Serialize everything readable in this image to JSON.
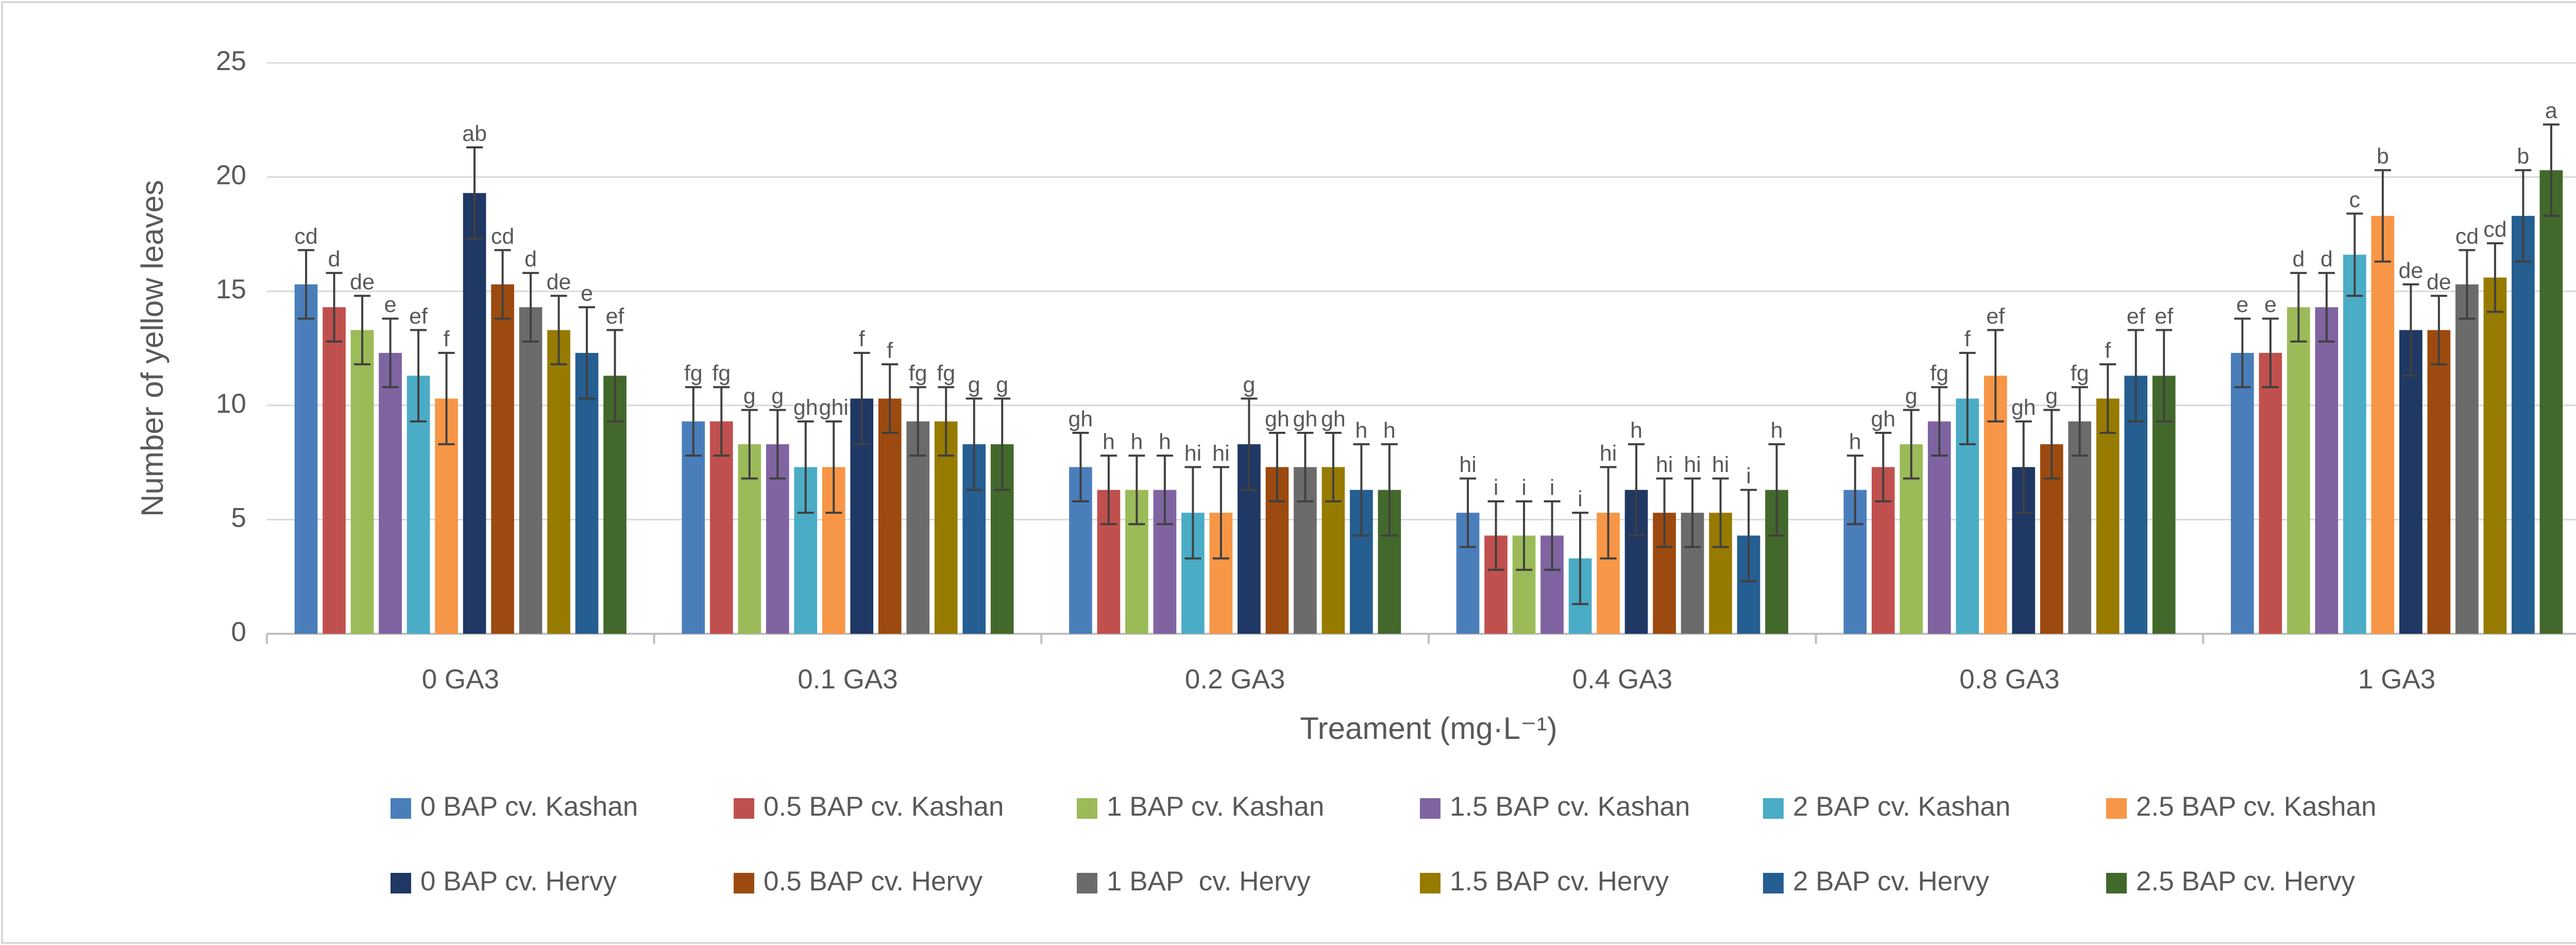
{
  "chart_data": {
    "type": "bar",
    "x_label": "Treament (mg·L⁻¹)",
    "y_label": "Number of yellow leaves",
    "categories": [
      "0 GA3",
      "0.1 GA3",
      "0.2 GA3",
      "0.4 GA3",
      "0.8 GA3",
      "1 GA3"
    ],
    "ylim": [
      0,
      25
    ],
    "yticks": [
      0,
      5,
      10,
      15,
      20,
      25
    ],
    "grid": true,
    "legend": "bottom",
    "series": [
      {
        "name": "0 BAP cv. Kashan",
        "color": "#4a7ebb",
        "values": [
          15.3,
          9.3,
          7.3,
          5.3,
          6.3,
          12.3
        ],
        "errors": [
          1.5,
          1.5,
          1.5,
          1.5,
          1.5,
          1.5
        ],
        "labels": [
          "cd",
          "fg",
          "gh",
          "hi",
          "h",
          "e"
        ]
      },
      {
        "name": "0.5 BAP cv. Kashan",
        "color": "#c0504d",
        "values": [
          14.3,
          9.3,
          6.3,
          4.3,
          7.3,
          12.3
        ],
        "errors": [
          1.5,
          1.5,
          1.5,
          1.5,
          1.5,
          1.5
        ],
        "labels": [
          "d",
          "fg",
          "h",
          "i",
          "gh",
          "e"
        ]
      },
      {
        "name": "1 BAP cv. Kashan",
        "color": "#9bbb59",
        "values": [
          13.3,
          8.3,
          6.3,
          4.3,
          8.3,
          14.3
        ],
        "errors": [
          1.5,
          1.5,
          1.5,
          1.5,
          1.5,
          1.5
        ],
        "labels": [
          "de",
          "g",
          "h",
          "i",
          "g",
          "d"
        ]
      },
      {
        "name": "1.5 BAP cv. Kashan",
        "color": "#8064a2",
        "values": [
          12.3,
          8.3,
          6.3,
          4.3,
          9.3,
          14.3
        ],
        "errors": [
          1.5,
          1.5,
          1.5,
          1.5,
          1.5,
          1.5
        ],
        "labels": [
          "e",
          "g",
          "h",
          "i",
          "fg",
          "d"
        ]
      },
      {
        "name": "2 BAP cv. Kashan",
        "color": "#4bacc6",
        "values": [
          11.3,
          7.3,
          5.3,
          3.3,
          10.3,
          16.6
        ],
        "errors": [
          2,
          2,
          2,
          2,
          2,
          1.8
        ],
        "labels": [
          "ef",
          "gh",
          "hi",
          "i",
          "f",
          "c"
        ]
      },
      {
        "name": "2.5 BAP cv. Kashan",
        "color": "#f79646",
        "values": [
          10.3,
          7.3,
          5.3,
          5.3,
          11.3,
          18.3
        ],
        "errors": [
          2,
          2,
          2,
          2,
          2,
          2
        ],
        "labels": [
          "f",
          "ghi",
          "hi",
          "hi",
          "ef",
          "b"
        ]
      },
      {
        "name": "0 BAP cv. Hervy",
        "color": "#1f3864",
        "values": [
          19.3,
          10.3,
          8.3,
          6.3,
          7.3,
          13.3
        ],
        "errors": [
          2,
          2,
          2,
          2,
          2,
          2
        ],
        "labels": [
          "ab",
          "f",
          "g",
          "h",
          "gh",
          "de"
        ]
      },
      {
        "name": "0.5 BAP cv. Hervy",
        "color": "#9c4a0f",
        "values": [
          15.3,
          10.3,
          7.3,
          5.3,
          8.3,
          13.3
        ],
        "errors": [
          1.5,
          1.5,
          1.5,
          1.5,
          1.5,
          1.5
        ],
        "labels": [
          "cd",
          "f",
          "gh",
          "hi",
          "g",
          "de"
        ]
      },
      {
        "name": "1 BAP  cv. Hervy",
        "color": "#6b6b6b",
        "values": [
          14.3,
          9.3,
          7.3,
          5.3,
          9.3,
          15.3
        ],
        "errors": [
          1.5,
          1.5,
          1.5,
          1.5,
          1.5,
          1.5
        ],
        "labels": [
          "d",
          "fg",
          "gh",
          "hi",
          "fg",
          "cd"
        ]
      },
      {
        "name": "1.5 BAP cv. Hervy",
        "color": "#977a00",
        "values": [
          13.3,
          9.3,
          7.3,
          5.3,
          10.3,
          15.6
        ],
        "errors": [
          1.5,
          1.5,
          1.5,
          1.5,
          1.5,
          1.5
        ],
        "labels": [
          "de",
          "fg",
          "gh",
          "hi",
          "f",
          "cd"
        ]
      },
      {
        "name": "2 BAP cv. Hervy",
        "color": "#255e91",
        "values": [
          12.3,
          8.3,
          6.3,
          4.3,
          11.3,
          18.3
        ],
        "errors": [
          2,
          2,
          2,
          2,
          2,
          2
        ],
        "labels": [
          "e",
          "g",
          "h",
          "i",
          "ef",
          "b"
        ]
      },
      {
        "name": "2.5 BAP cv. Hervy",
        "color": "#43682b",
        "values": [
          11.3,
          8.3,
          6.3,
          6.3,
          11.3,
          20.3
        ],
        "errors": [
          2,
          2,
          2,
          2,
          2,
          2
        ],
        "labels": [
          "ef",
          "g",
          "h",
          "h",
          "ef",
          "a"
        ]
      }
    ]
  }
}
